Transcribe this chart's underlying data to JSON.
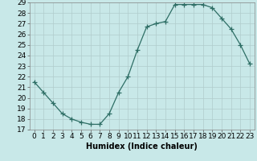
{
  "x": [
    0,
    1,
    2,
    3,
    4,
    5,
    6,
    7,
    8,
    9,
    10,
    11,
    12,
    13,
    14,
    15,
    16,
    17,
    18,
    19,
    20,
    21,
    22,
    23
  ],
  "y": [
    21.5,
    20.5,
    19.5,
    18.5,
    18.0,
    17.7,
    17.5,
    17.5,
    18.5,
    20.5,
    22.0,
    24.5,
    26.7,
    27.0,
    27.2,
    28.8,
    28.8,
    28.8,
    28.8,
    28.5,
    27.5,
    26.5,
    25.0,
    23.2
  ],
  "line_color": "#2e6e65",
  "marker": "+",
  "marker_size": 4,
  "bg_color": "#c8e8e8",
  "grid_color": "#b0cccc",
  "xlabel": "Humidex (Indice chaleur)",
  "ylim": [
    17,
    29
  ],
  "xlim_min": -0.5,
  "xlim_max": 23.5,
  "yticks": [
    17,
    18,
    19,
    20,
    21,
    22,
    23,
    24,
    25,
    26,
    27,
    28,
    29
  ],
  "xticks": [
    0,
    1,
    2,
    3,
    4,
    5,
    6,
    7,
    8,
    9,
    10,
    11,
    12,
    13,
    14,
    15,
    16,
    17,
    18,
    19,
    20,
    21,
    22,
    23
  ],
  "xlabel_fontsize": 7,
  "tick_fontsize": 6.5
}
